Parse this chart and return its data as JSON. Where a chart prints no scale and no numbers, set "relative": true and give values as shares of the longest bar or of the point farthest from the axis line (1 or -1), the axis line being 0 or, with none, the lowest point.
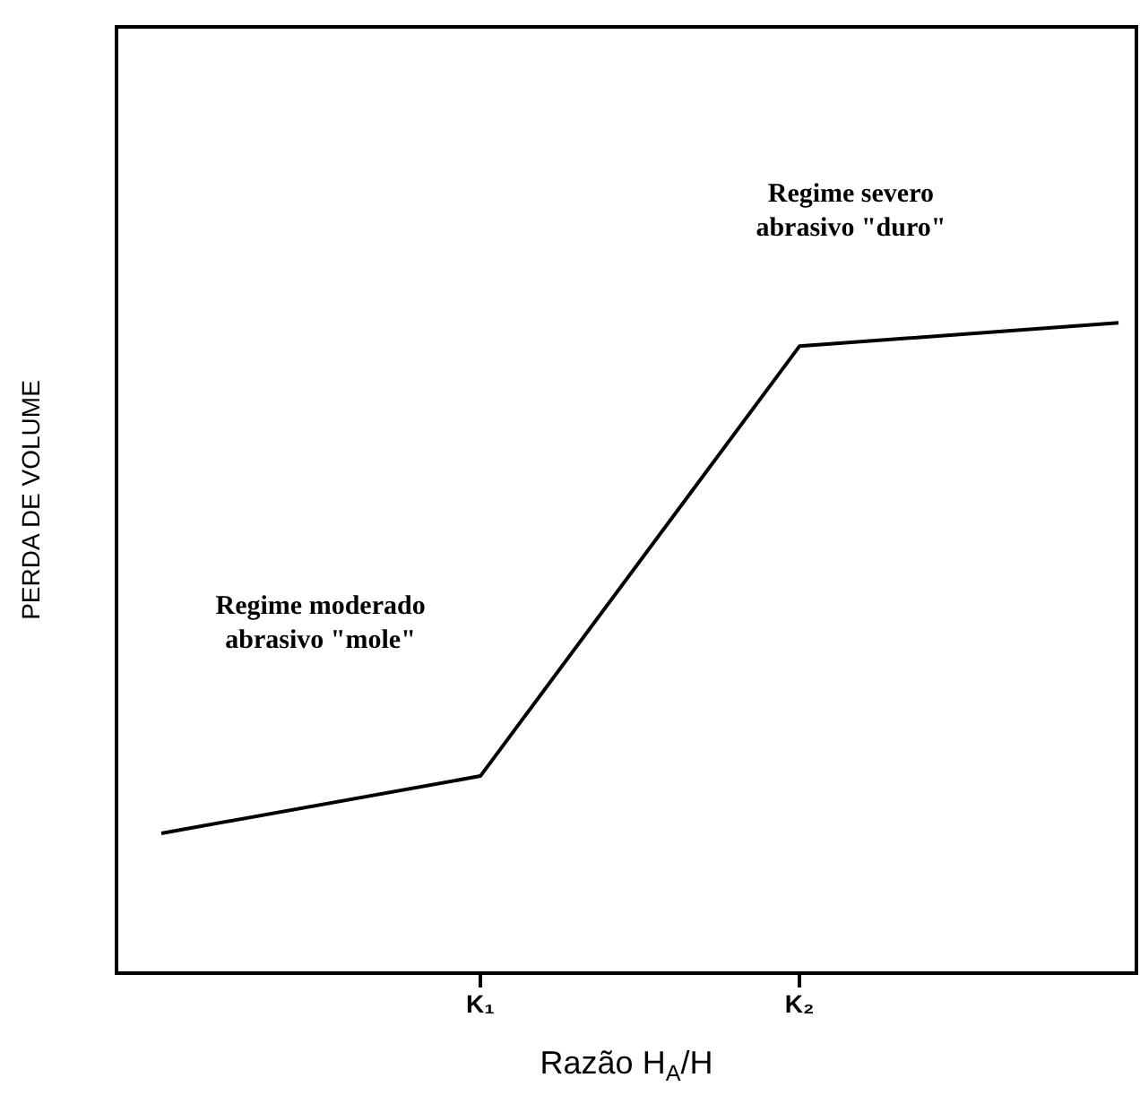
{
  "chart_data": {
    "type": "line",
    "relative": true,
    "xlabel": "Razão H$_{A}$/H",
    "ylabel": "PERDA DE VOLUME",
    "categories": [
      null,
      "K₁",
      "K₂",
      null
    ],
    "series": [
      {
        "color": "#000000",
        "values": [
          0.215,
          0.303,
          0.964,
          1
        ]
      }
    ],
    "annotations": [
      "Regime moderado\nabrasivo \"mole\"",
      "Regime severo\nabrasivo \"duro\""
    ],
    "marker": "none",
    "line_style": "solid",
    "grid": false
  }
}
